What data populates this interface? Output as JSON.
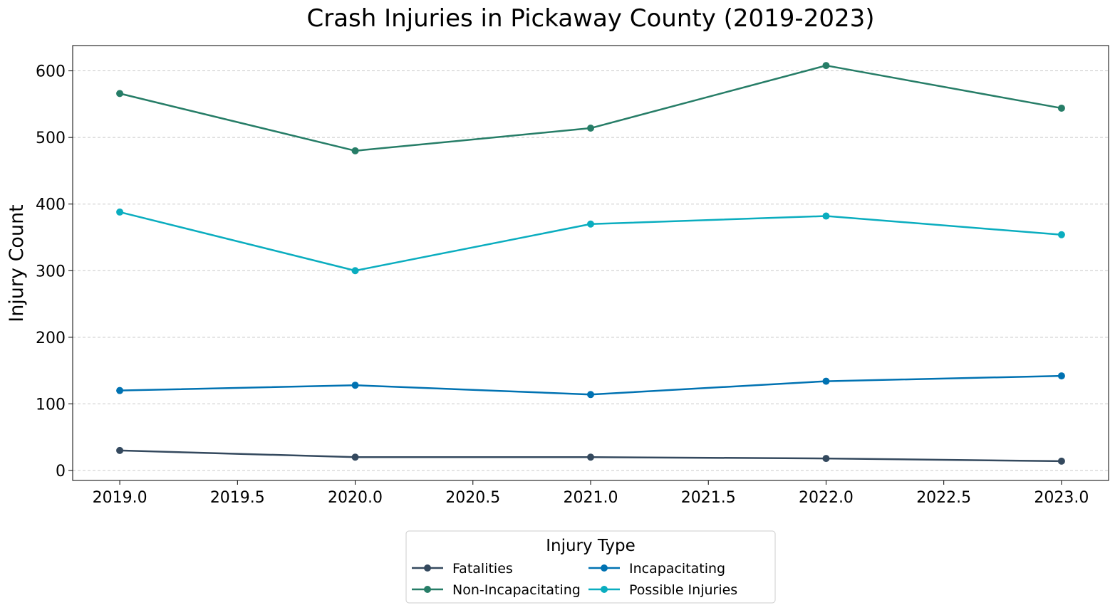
{
  "chart_data": {
    "type": "line",
    "title": "Crash Injuries in Pickaway County (2019-2023)",
    "xlabel": "",
    "ylabel": "Injury Count",
    "x": [
      2019,
      2020,
      2021,
      2022,
      2023
    ],
    "xlim": [
      2018.8,
      2023.2
    ],
    "ylim": [
      -15,
      638
    ],
    "x_ticks": [
      2019.0,
      2019.5,
      2020.0,
      2020.5,
      2021.0,
      2021.5,
      2022.0,
      2022.5,
      2023.0
    ],
    "x_tick_labels": [
      "2019.0",
      "2019.5",
      "2020.0",
      "2020.5",
      "2021.0",
      "2021.5",
      "2022.0",
      "2022.5",
      "2023.0"
    ],
    "y_ticks": [
      0,
      100,
      200,
      300,
      400,
      500,
      600
    ],
    "y_tick_labels": [
      "0",
      "100",
      "200",
      "300",
      "400",
      "500",
      "600"
    ],
    "grid": "horizontal dashed",
    "legend": {
      "title": "Injury Type",
      "placement": "bottom-center, below axes",
      "columns": 2
    },
    "series": [
      {
        "name": "Fatalities",
        "color": "#34495e",
        "values": [
          30,
          20,
          20,
          18,
          14
        ]
      },
      {
        "name": "Incapacitating",
        "color": "#0072b2",
        "values": [
          120,
          128,
          114,
          134,
          142
        ]
      },
      {
        "name": "Non-Incapacitating",
        "color": "#267d67",
        "values": [
          566,
          480,
          514,
          608,
          544
        ]
      },
      {
        "name": "Possible Injuries",
        "color": "#0aadbf",
        "values": [
          388,
          300,
          370,
          382,
          354
        ]
      }
    ]
  }
}
